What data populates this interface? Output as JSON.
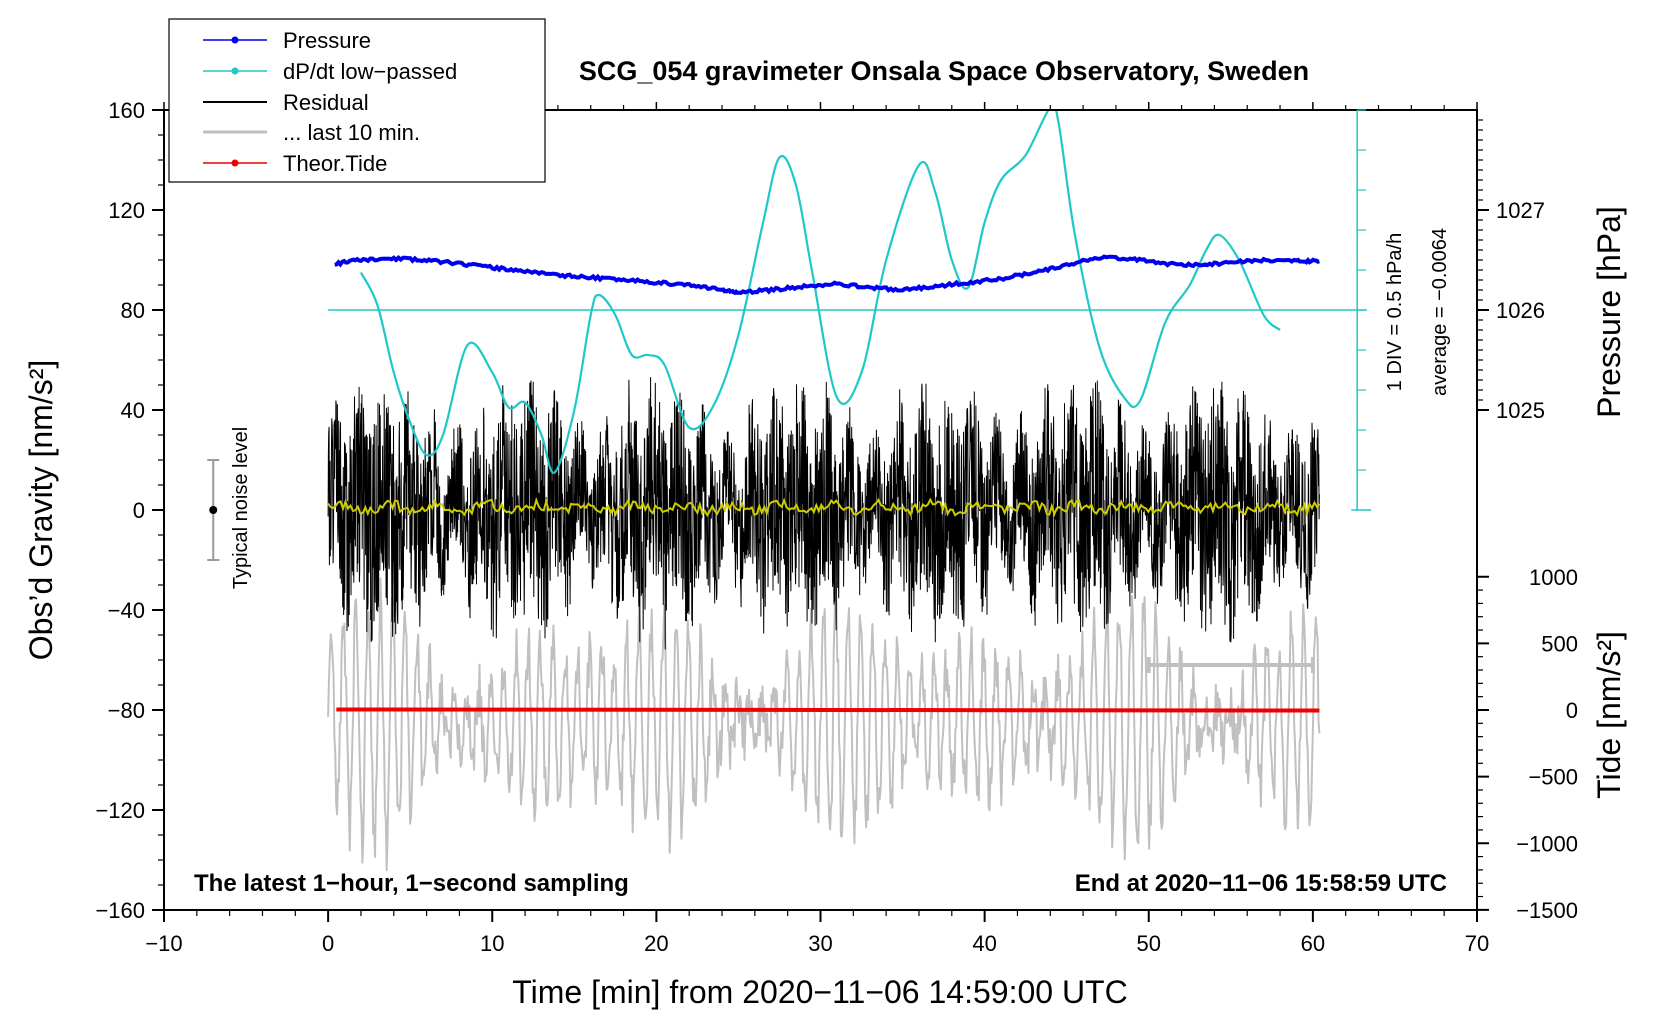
{
  "colors": {
    "pressure": "#0000ee",
    "dpdt": "#1fc8c8",
    "residual": "#000000",
    "last10": "#c0c0c0",
    "tide": "#ee0000",
    "mean": "#cccc00"
  },
  "chart_data": {
    "type": "line",
    "title": "SCG_054 gravimeter Onsala Space Observatory, Sweden",
    "xlabel": "Time [min] from 2020−11−06 14:59:00 UTC",
    "ylabel_left": "Obs’d Gravity [nm/s²]",
    "ylabel_pressure": "Pressure [hPa]",
    "ylabel_tide": "Tide [nm/s²]",
    "xlim": [
      -10,
      70
    ],
    "ylim": [
      -160,
      160
    ],
    "xticks": [
      "−10",
      "0",
      "10",
      "20",
      "30",
      "40",
      "50",
      "60",
      "70"
    ],
    "yticks": [
      "160",
      "120",
      "80",
      "40",
      "0",
      "−40",
      "−80",
      "−120",
      "−160"
    ],
    "pressure_axis": {
      "ticks": [
        "1027",
        "1026",
        "1025"
      ],
      "values": [
        1027,
        1026,
        1025
      ],
      "gravity_at": [
        120,
        80,
        40
      ]
    },
    "tide_axis": {
      "ticks": [
        "1000",
        "500",
        "0",
        "−500",
        "−1000",
        "−1500"
      ],
      "values": [
        1000,
        500,
        0,
        -500,
        -1000,
        -1500
      ]
    },
    "legend": [
      "Pressure",
      "dP/dt low−passed",
      "Residual",
      "... last 10 min.",
      "Theor.Tide"
    ],
    "noise_label": "Typical noise level",
    "dpdt_scale_label": "1 DIV = 0.5 hPa/h",
    "dpdt_average_label": "average = −0.0064",
    "note_left": "The latest 1−hour, 1−second sampling",
    "note_right": "End at 2020−11−06 15:58:59 UTC",
    "series": [
      {
        "name": "Pressure",
        "x": [
          0.4,
          2,
          4,
          6,
          8,
          10,
          12,
          14,
          16,
          18,
          20,
          22,
          24,
          25,
          27,
          29,
          31,
          33,
          35,
          37,
          39,
          41,
          43,
          45,
          47,
          49,
          51,
          53,
          55,
          57,
          59,
          60.4
        ],
        "y": [
          98.5,
          100,
          100.5,
          100,
          98.5,
          97,
          95.5,
          94,
          93,
          92,
          91,
          90,
          88,
          87,
          88,
          89.5,
          90.5,
          89,
          88,
          89.5,
          91,
          92.5,
          95,
          98,
          101,
          100.5,
          98.5,
          98,
          99,
          100,
          99.5,
          99.5
        ]
      },
      {
        "name": "dP/dt low-passed",
        "x": [
          2,
          3,
          4,
          5,
          6,
          7,
          8.5,
          10,
          11,
          12,
          13,
          13.8,
          15,
          16,
          16.5,
          17.5,
          18.5,
          19.5,
          20.5,
          22,
          23.5,
          25,
          26.5,
          27.5,
          28.5,
          29.5,
          31,
          32.5,
          34,
          36,
          37,
          38,
          39,
          40,
          41,
          42.5,
          44,
          44.5,
          45.5,
          47,
          48.5,
          49.5,
          51,
          52.5,
          53.5,
          54.3,
          55.5,
          57,
          58
        ],
        "y": [
          95,
          82,
          55,
          35,
          22,
          30,
          66,
          55,
          41,
          43,
          30,
          15,
          40,
          78,
          86,
          78,
          62,
          62,
          58,
          33,
          42,
          70,
          115,
          141,
          130,
          95,
          45,
          55,
          100,
          138,
          127,
          100,
          89,
          115,
          132,
          142,
          161,
          155,
          110,
          65,
          45,
          44,
          75,
          90,
          104,
          110,
          100,
          78,
          72
        ]
      },
      {
        "name": "Residual",
        "x_range": [
          0,
          60.4
        ],
        "amplitude": 45,
        "seed": 1
      },
      {
        "name": "last 10 min",
        "x_range": [
          0,
          60.4
        ],
        "center": -85,
        "amplitude": 50,
        "period_min": 0.75
      },
      {
        "name": "Residual smoothed",
        "x_range": [
          0,
          60.4
        ],
        "value": 1
      },
      {
        "name": "Theor.Tide",
        "x": [
          0.5,
          60.4
        ],
        "y": [
          -79.8,
          -80.2
        ],
        "tide_nm_s2": [
          0,
          0
        ]
      }
    ],
    "scale_bar": {
      "x": [
        50,
        60
      ],
      "y": -62
    },
    "noise_bar": {
      "x": -7,
      "y": 0,
      "range": [
        -20,
        20
      ]
    },
    "reference_line": 80,
    "dpdt_zero_at": 0
  }
}
